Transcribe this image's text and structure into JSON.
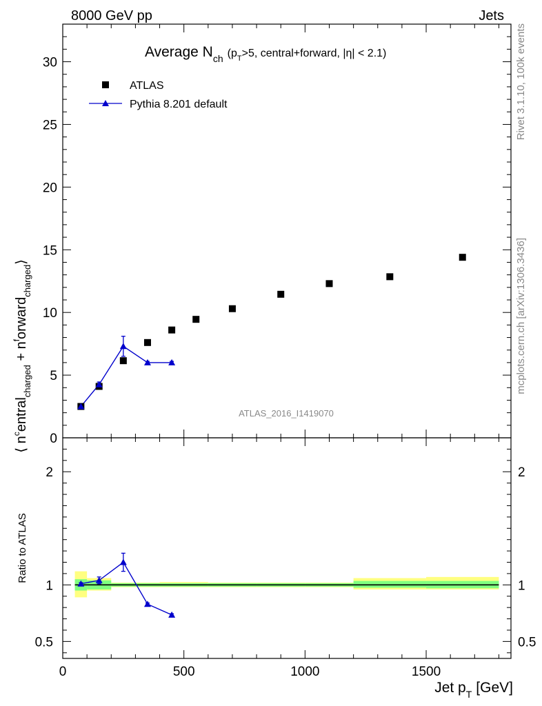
{
  "header": {
    "left": "8000 GeV pp",
    "right": "Jets"
  },
  "side_labels": {
    "rivet": "Rivet 3.1.10,  100k events",
    "mcplots": "mcplots.cern.ch [arXiv:1306.3436]"
  },
  "watermark": "ATLAS_2016_I1419070",
  "colors": {
    "data": "#000000",
    "mc": "#0000cc",
    "band_inner": "#80ff80",
    "band_outer": "#ffff80"
  },
  "chart_data": [
    {
      "type": "scatter",
      "title_main": "Average N",
      "title_sub": "ch",
      "title_rest": "(p",
      "title_rest_sub": "T",
      "title_tail": ">5, central+forward, |η| < 2.1)",
      "ylabel_parts": [
        "⟨ n",
        "c",
        "entral",
        "charged",
        " + n",
        "f",
        "orward",
        "charged",
        "⟩"
      ],
      "xlim": [
        0,
        1850
      ],
      "ylim": [
        0,
        33
      ],
      "yticks": [
        0,
        5,
        10,
        15,
        20,
        25,
        30
      ],
      "legend_position": "top-left",
      "series": [
        {
          "name": "ATLAS",
          "marker": "square",
          "x": [
            75,
            150,
            250,
            350,
            450,
            550,
            700,
            900,
            1100,
            1350,
            1650
          ],
          "y": [
            2.5,
            4.1,
            6.15,
            7.6,
            8.6,
            9.45,
            10.3,
            11.45,
            12.3,
            12.85,
            14.4
          ]
        },
        {
          "name": "Pythia 8.201 default",
          "marker": "triangle",
          "x": [
            75,
            150,
            250,
            350,
            450
          ],
          "y": [
            2.5,
            4.25,
            7.3,
            6.0,
            6.0
          ],
          "yerr": [
            0.1,
            0.2,
            0.8,
            0.1,
            0.1
          ]
        }
      ]
    },
    {
      "type": "scatter",
      "ylabel": "Ratio to ATLAS",
      "xlabel_main": "Jet p",
      "xlabel_sub": "T",
      "xlabel_unit": "[GeV]",
      "xlim": [
        0,
        1850
      ],
      "ylim": [
        0.35,
        2.3
      ],
      "yticks": [
        0.5,
        1,
        2
      ],
      "ytick_labels": [
        "0.5",
        "1",
        "2"
      ],
      "xticks": [
        0,
        500,
        1000,
        1500
      ],
      "bands": [
        {
          "x0": 50,
          "x1": 100,
          "inner": [
            0.95,
            1.05
          ],
          "outer": [
            0.89,
            1.12
          ]
        },
        {
          "x0": 100,
          "x1": 200,
          "inner": [
            0.96,
            1.04
          ],
          "outer": [
            0.95,
            1.06
          ]
        },
        {
          "x0": 200,
          "x1": 300,
          "inner": [
            0.985,
            1.015
          ],
          "outer": [
            0.98,
            1.02
          ]
        },
        {
          "x0": 300,
          "x1": 400,
          "inner": [
            0.985,
            1.015
          ],
          "outer": [
            0.98,
            1.02
          ]
        },
        {
          "x0": 400,
          "x1": 600,
          "inner": [
            0.985,
            1.015
          ],
          "outer": [
            0.98,
            1.025
          ]
        },
        {
          "x0": 600,
          "x1": 800,
          "inner": [
            0.985,
            1.015
          ],
          "outer": [
            0.98,
            1.02
          ]
        },
        {
          "x0": 800,
          "x1": 1000,
          "inner": [
            0.985,
            1.015
          ],
          "outer": [
            0.98,
            1.02
          ]
        },
        {
          "x0": 1000,
          "x1": 1200,
          "inner": [
            0.985,
            1.015
          ],
          "outer": [
            0.98,
            1.02
          ]
        },
        {
          "x0": 1200,
          "x1": 1500,
          "inner": [
            0.975,
            1.035
          ],
          "outer": [
            0.96,
            1.06
          ]
        },
        {
          "x0": 1500,
          "x1": 1800,
          "inner": [
            0.97,
            1.035
          ],
          "outer": [
            0.96,
            1.07
          ]
        }
      ],
      "series": [
        {
          "name": "Pythia 8.201 default",
          "x": [
            75,
            150,
            250,
            350,
            450
          ],
          "y": [
            1.01,
            1.04,
            1.2,
            0.83,
            0.735
          ],
          "yerr": [
            0.01,
            0.03,
            0.08,
            0.01,
            0.01
          ]
        }
      ]
    }
  ]
}
